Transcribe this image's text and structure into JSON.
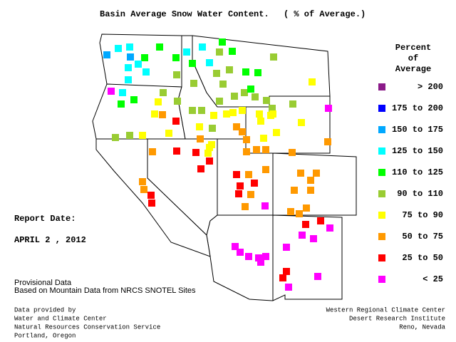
{
  "header": {
    "title": "Basin Average Snow Water Content.",
    "subtitle": "( % of Average.)"
  },
  "legend": {
    "title": [
      "Percent",
      "of",
      "Average"
    ],
    "items": [
      {
        "label": "> 200",
        "color": "#8b1a89"
      },
      {
        "label": "175 to 200",
        "color": "#0000ff"
      },
      {
        "label": "150 to 175",
        "color": "#00a8ff"
      },
      {
        "label": "125 to 150",
        "color": "#00ffff"
      },
      {
        "label": "110 to 125",
        "color": "#00ff00"
      },
      {
        "label": "90 to 110",
        "color": "#99cc33"
      },
      {
        "label": "75 to 90",
        "color": "#ffff00"
      },
      {
        "label": "50 to 75",
        "color": "#ff9900"
      },
      {
        "label": "25 to 50",
        "color": "#ff0000"
      },
      {
        "label": "< 25",
        "color": "#ff00ff"
      }
    ]
  },
  "report": {
    "label": "Report Date:",
    "date": "APRIL 2 , 2012"
  },
  "provisional": [
    "Provisional Data",
    "Based on Mountain Data from NRCS SNOTEL Sites"
  ],
  "footer": {
    "left": [
      "Data provided by",
      "Water and Climate Center",
      "Natural Resources Conservation Service",
      "Portland, Oregon"
    ],
    "right": [
      "Western Regional Climate Center",
      "Desert Research Institute",
      "Reno, Nevada"
    ]
  }
}
